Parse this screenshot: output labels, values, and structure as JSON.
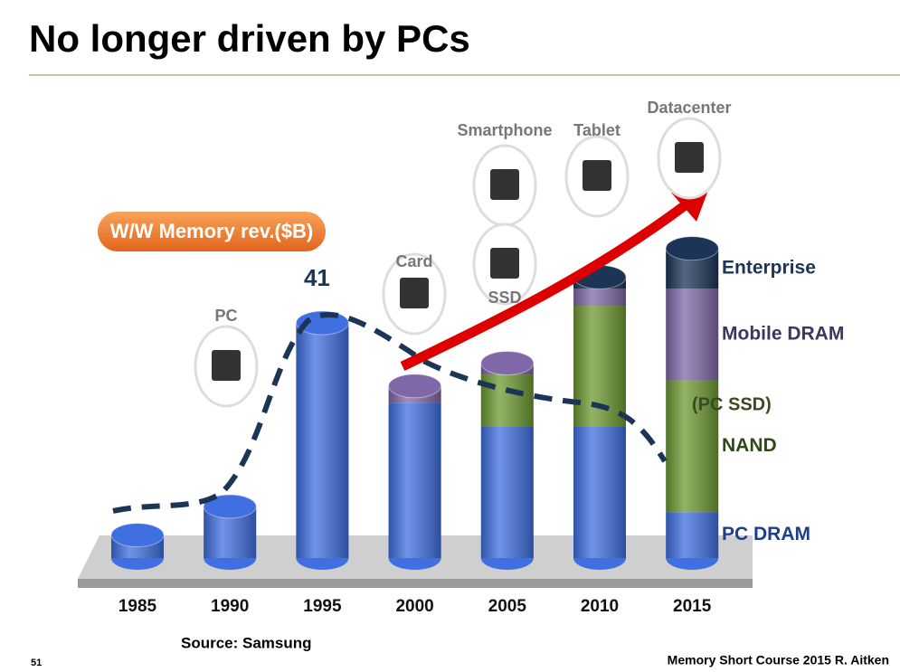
{
  "slide": {
    "title": "No longer driven by PCs",
    "page_number": "51",
    "footer": "Memory Short Course 2015 R. Aitken",
    "source": "Source: Samsung"
  },
  "chart_data": {
    "type": "bar",
    "stacked": true,
    "title": "W/W Memory rev.($B)",
    "categories": [
      "1985",
      "1990",
      "1995",
      "2000",
      "2005",
      "2010",
      "2015"
    ],
    "series": [
      {
        "name": "PC DRAM",
        "color": "#3f6fe0",
        "values": [
          4,
          9,
          41,
          27,
          23,
          23,
          8
        ]
      },
      {
        "name": "NAND",
        "color": "#6e9a32",
        "values": [
          0,
          0,
          0,
          0,
          9,
          21,
          23
        ]
      },
      {
        "name": "Mobile DRAM",
        "color": "#8068a8",
        "values": [
          0,
          0,
          0,
          3,
          2,
          3,
          16
        ]
      },
      {
        "name": "Enterprise",
        "color": "#1c3556",
        "values": [
          0,
          0,
          0,
          0,
          0,
          2,
          7
        ]
      }
    ],
    "data_labels": [
      null,
      null,
      41,
      null,
      null,
      null,
      null
    ],
    "ssd_label": "(PC SSD)",
    "annotations": [
      "PC",
      "Card",
      "Smartphone",
      "SSD",
      "Tablet",
      "Datacenter"
    ]
  }
}
